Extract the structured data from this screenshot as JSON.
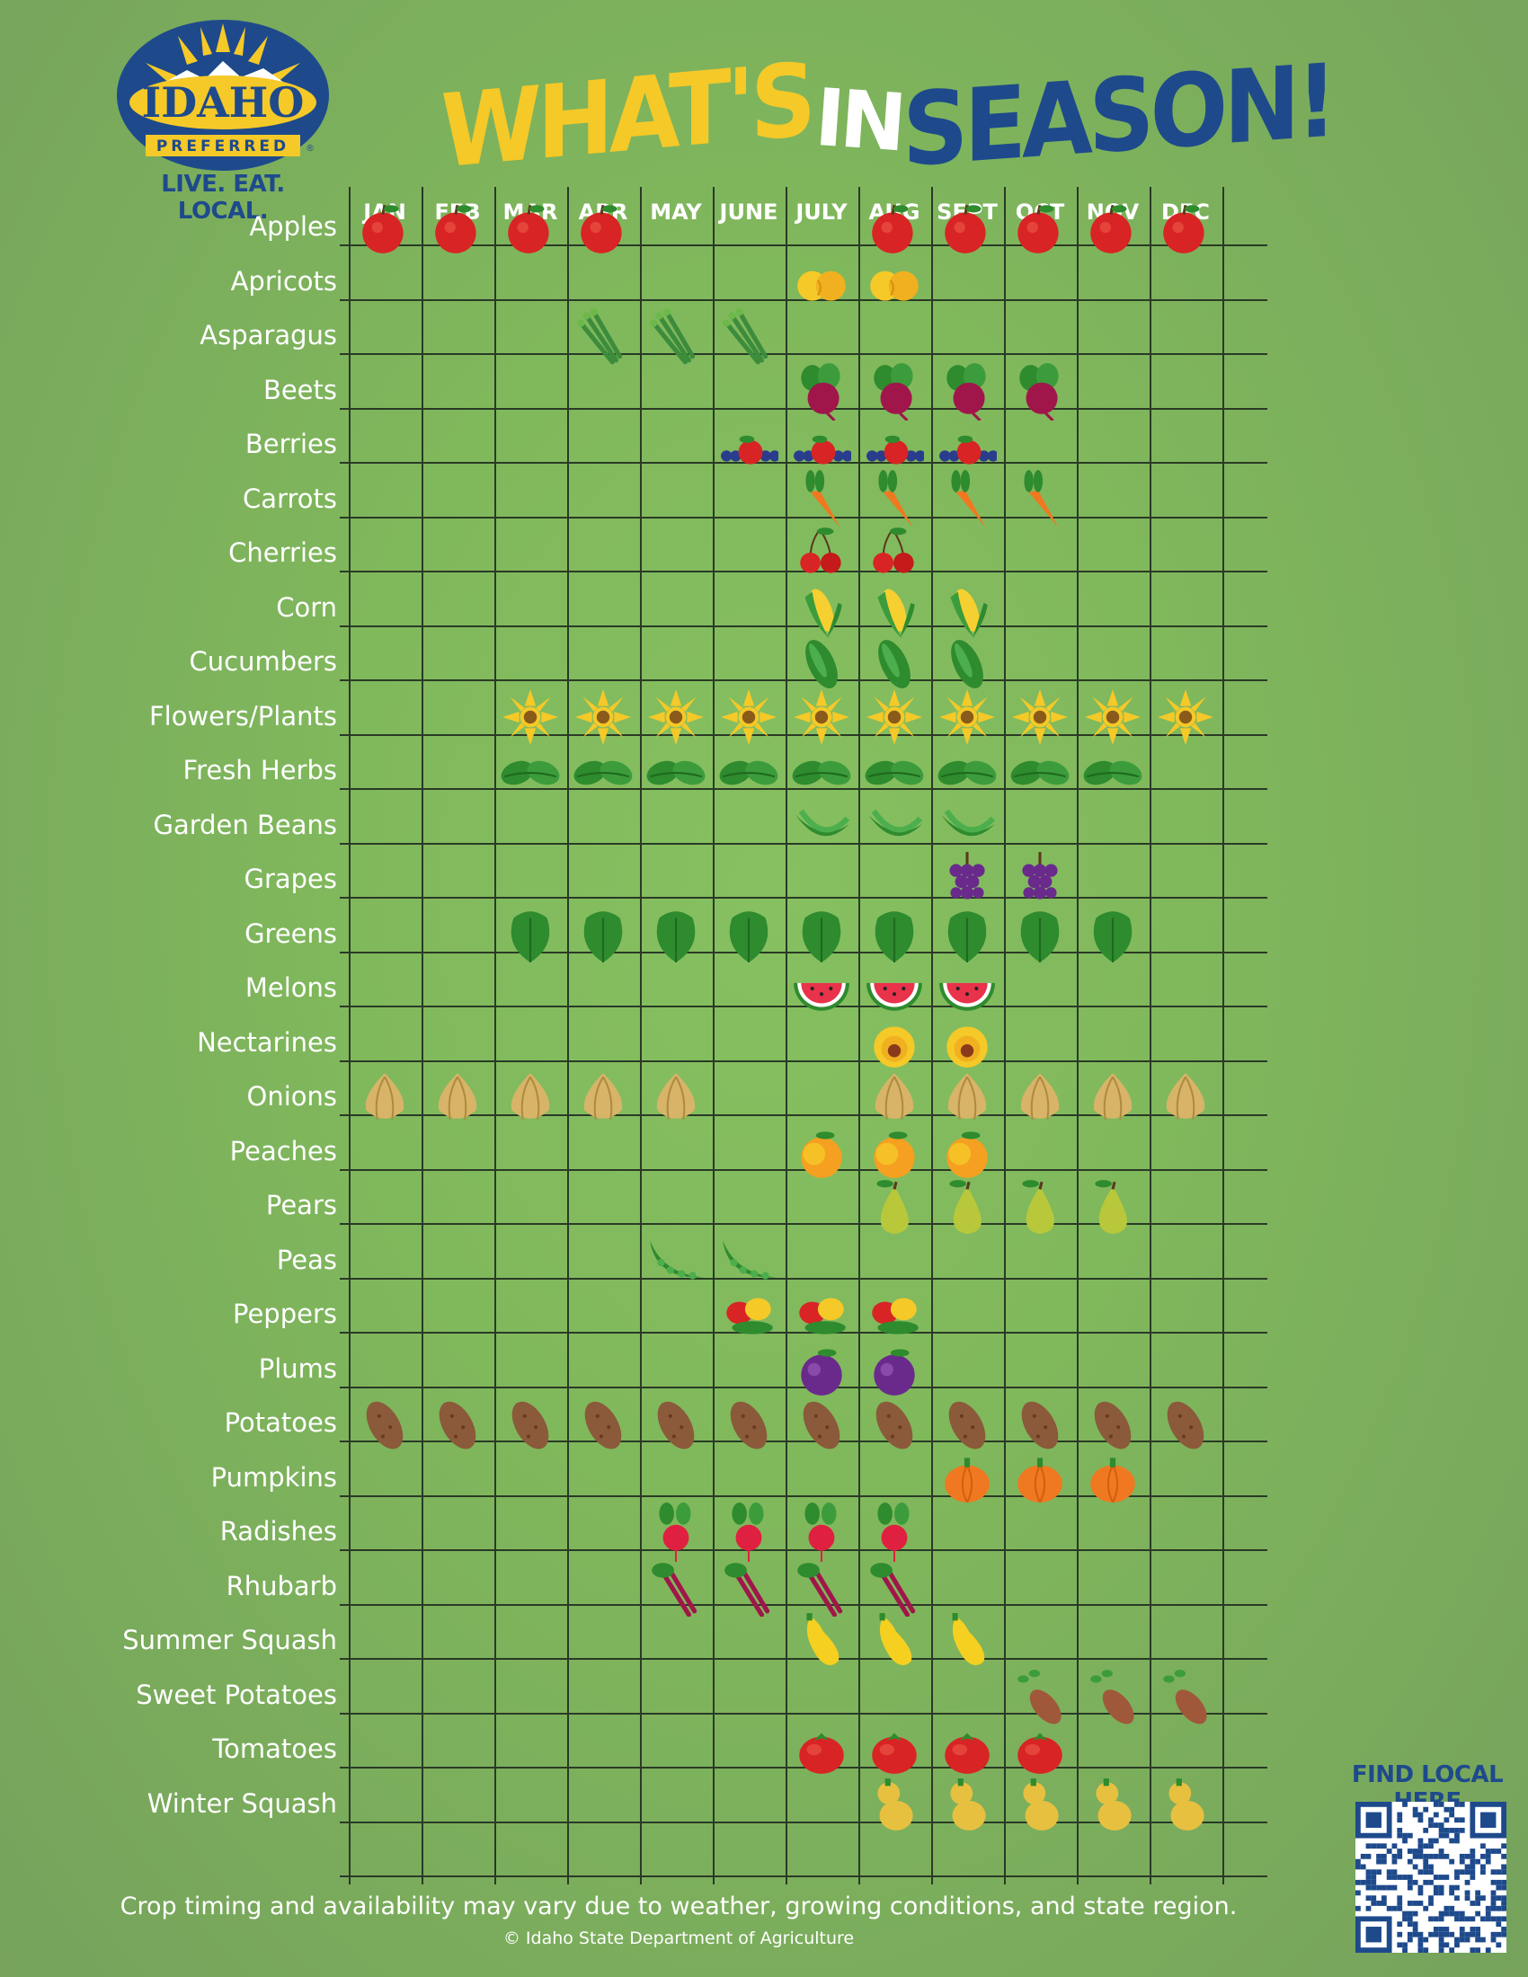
{
  "logo": {
    "word": "IDAHO",
    "sub": "PREFERRED",
    "mark": "®",
    "tagline": "LIVE. EAT. LOCAL."
  },
  "title": {
    "part1": "WHAT'S",
    "part2": "IN",
    "part3": "SEASON!"
  },
  "months": [
    "JAN",
    "FEB",
    "MAR",
    "APR",
    "MAY",
    "JUNE",
    "JULY",
    "AUG",
    "SEPT",
    "OCT",
    "NOV",
    "DEC"
  ],
  "crops": [
    {
      "name": "Apples",
      "icon": "apple-icon",
      "months": [
        0,
        1,
        2,
        3,
        7,
        8,
        9,
        10,
        11
      ]
    },
    {
      "name": "Apricots",
      "icon": "apricot-icon",
      "months": [
        6,
        7
      ]
    },
    {
      "name": "Asparagus",
      "icon": "asparagus-icon",
      "months": [
        3,
        4,
        5
      ]
    },
    {
      "name": "Beets",
      "icon": "beet-icon",
      "months": [
        6,
        7,
        8,
        9
      ]
    },
    {
      "name": "Berries",
      "icon": "berries-icon",
      "months": [
        5,
        6,
        7,
        8
      ]
    },
    {
      "name": "Carrots",
      "icon": "carrot-icon",
      "months": [
        6,
        7,
        8,
        9
      ]
    },
    {
      "name": "Cherries",
      "icon": "cherry-icon",
      "months": [
        6,
        7
      ]
    },
    {
      "name": "Corn",
      "icon": "corn-icon",
      "months": [
        6,
        7,
        8
      ]
    },
    {
      "name": "Cucumbers",
      "icon": "cucumber-icon",
      "months": [
        6,
        7,
        8
      ]
    },
    {
      "name": "Flowers/Plants",
      "icon": "flower-icon",
      "months": [
        2,
        3,
        4,
        5,
        6,
        7,
        8,
        9,
        10,
        11
      ]
    },
    {
      "name": "Fresh Herbs",
      "icon": "herb-icon",
      "months": [
        2,
        3,
        4,
        5,
        6,
        7,
        8,
        9,
        10
      ]
    },
    {
      "name": "Garden Beans",
      "icon": "bean-icon",
      "months": [
        6,
        7,
        8
      ]
    },
    {
      "name": "Grapes",
      "icon": "grape-icon",
      "months": [
        8,
        9
      ]
    },
    {
      "name": "Greens",
      "icon": "greens-icon",
      "months": [
        2,
        3,
        4,
        5,
        6,
        7,
        8,
        9,
        10
      ]
    },
    {
      "name": "Melons",
      "icon": "melon-icon",
      "months": [
        6,
        7,
        8
      ]
    },
    {
      "name": "Nectarines",
      "icon": "nectarine-icon",
      "months": [
        7,
        8
      ]
    },
    {
      "name": "Onions",
      "icon": "onion-icon",
      "months": [
        0,
        1,
        2,
        3,
        4,
        7,
        8,
        9,
        10,
        11
      ]
    },
    {
      "name": "Peaches",
      "icon": "peach-icon",
      "months": [
        6,
        7,
        8
      ]
    },
    {
      "name": "Pears",
      "icon": "pear-icon",
      "months": [
        7,
        8,
        9,
        10
      ]
    },
    {
      "name": "Peas",
      "icon": "pea-icon",
      "months": [
        4,
        5
      ]
    },
    {
      "name": "Peppers",
      "icon": "pepper-icon",
      "months": [
        5,
        6,
        7
      ]
    },
    {
      "name": "Plums",
      "icon": "plum-icon",
      "months": [
        6,
        7
      ]
    },
    {
      "name": "Potatoes",
      "icon": "potato-icon",
      "months": [
        0,
        1,
        2,
        3,
        4,
        5,
        6,
        7,
        8,
        9,
        10,
        11
      ]
    },
    {
      "name": "Pumpkins",
      "icon": "pumpkin-icon",
      "months": [
        8,
        9,
        10
      ]
    },
    {
      "name": "Radishes",
      "icon": "radish-icon",
      "months": [
        4,
        5,
        6,
        7
      ]
    },
    {
      "name": "Rhubarb",
      "icon": "rhubarb-icon",
      "months": [
        4,
        5,
        6,
        7
      ]
    },
    {
      "name": "Summer Squash",
      "icon": "summer-squash-icon",
      "months": [
        6,
        7,
        8
      ]
    },
    {
      "name": "Sweet Potatoes",
      "icon": "sweet-potato-icon",
      "months": [
        9,
        10,
        11
      ]
    },
    {
      "name": "Tomatoes",
      "icon": "tomato-icon",
      "months": [
        6,
        7,
        8,
        9
      ]
    },
    {
      "name": "Winter Squash",
      "icon": "winter-squash-icon",
      "months": [
        7,
        8,
        9,
        10,
        11
      ]
    }
  ],
  "footer": {
    "note": "Crop timing and availability may vary due to weather, growing conditions, and state region.",
    "copyright": "© Idaho State Department of Agriculture"
  },
  "qr": {
    "label": "FIND LOCAL HERE"
  },
  "colors": {
    "background": "#80b85c",
    "title_yellow": "#f5c928",
    "title_blue": "#1e4a8c",
    "grid": "#2a3a26"
  }
}
